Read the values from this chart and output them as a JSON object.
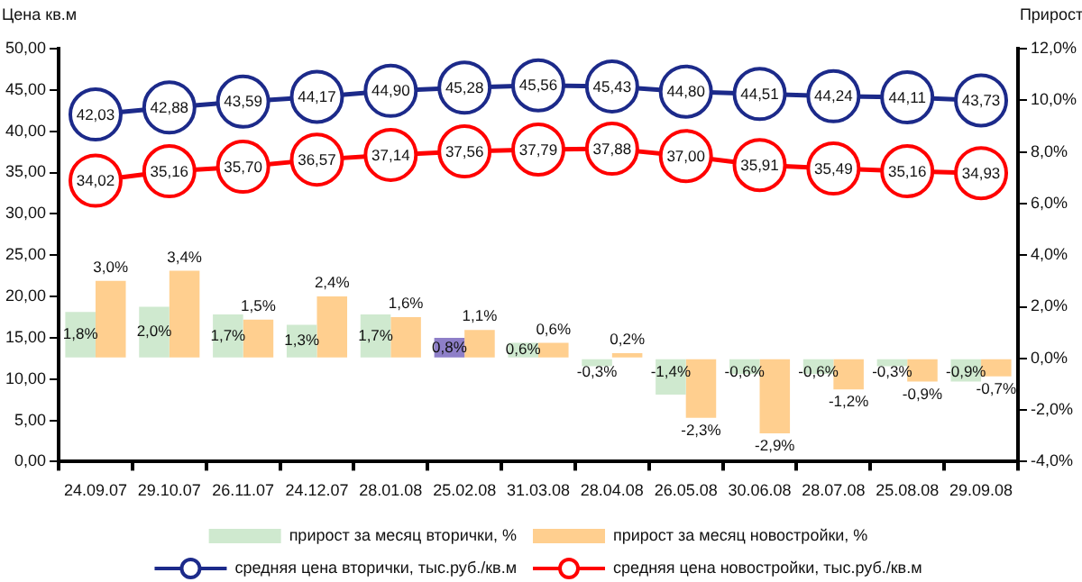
{
  "chart_data": {
    "type": "bar",
    "ylabel": "Цена кв.м",
    "y2label": "Прирост",
    "categories": [
      "24.09.07",
      "29.10.07",
      "26.11.07",
      "24.12.07",
      "28.01.08",
      "25.02.08",
      "31.03.08",
      "28.04.08",
      "26.05.08",
      "30.06.08",
      "28.07.08",
      "25.08.08",
      "29.09.08"
    ],
    "series": [
      {
        "name": "прирост за месяц вторички, %",
        "axis": "y2",
        "color": "#cfe9cf",
        "colors": [
          "#cfe9cf",
          "#cfe9cf",
          "#cfe9cf",
          "#cfe9cf",
          "#cfe9cf",
          "#8e7fc8",
          "#cfe9cf",
          "#cfe9cf",
          "#cfe9cf",
          "#cfe9cf",
          "#cfe9cf",
          "#cfe9cf",
          "#cfe9cf"
        ],
        "values": [
          1.8,
          2.0,
          1.7,
          1.3,
          1.7,
          0.8,
          0.6,
          -0.3,
          -1.4,
          -0.6,
          -0.6,
          -0.3,
          -0.9
        ],
        "value_labels": [
          "1,8%",
          "2,0%",
          "1,7%",
          "1,3%",
          "1,7%",
          "0,8%",
          "0,6%",
          "-0,3%",
          "-1,4%",
          "-0,6%",
          "-0,6%",
          "-0,3%",
          "-0,9%"
        ]
      },
      {
        "name": "прирост за месяц новостройки, %",
        "axis": "y2",
        "color": "#ffcf8f",
        "values": [
          3.0,
          3.4,
          1.5,
          2.4,
          1.6,
          1.1,
          0.6,
          0.2,
          -2.3,
          -2.9,
          -1.2,
          -0.9,
          -0.7
        ],
        "value_labels": [
          "3,0%",
          "3,4%",
          "1,5%",
          "2,4%",
          "1,6%",
          "1,1%",
          "0,6%",
          "0,2%",
          "-2,3%",
          "-2,9%",
          "-1,2%",
          "-0,9%",
          "-0,7%"
        ]
      },
      {
        "name": "средняя цена вторички, тыс.руб./кв.м",
        "type": "line",
        "color": "#1c2a8a",
        "values": [
          42.03,
          42.88,
          43.59,
          44.17,
          44.9,
          45.28,
          45.56,
          45.43,
          44.8,
          44.51,
          44.24,
          44.11,
          43.73
        ],
        "value_labels": [
          "42,03",
          "42,88",
          "43,59",
          "44,17",
          "44,90",
          "45,28",
          "45,56",
          "45,43",
          "44,80",
          "44,51",
          "44,24",
          "44,11",
          "43,73"
        ]
      },
      {
        "name": "средняя цена новостройки, тыс.руб./кв.м",
        "type": "line",
        "color": "#ff0000",
        "values": [
          34.02,
          35.16,
          35.7,
          36.57,
          37.14,
          37.56,
          37.79,
          37.88,
          37.0,
          35.91,
          35.49,
          35.16,
          34.93
        ],
        "value_labels": [
          "34,02",
          "35,16",
          "35,70",
          "36,57",
          "37,14",
          "37,56",
          "37,79",
          "37,88",
          "37,00",
          "35,91",
          "35,49",
          "35,16",
          "34,93"
        ]
      }
    ],
    "ylim": [
      0,
      50
    ],
    "yticks": [
      {
        "value": 0,
        "label": "0,00"
      },
      {
        "value": 5,
        "label": "5,00"
      },
      {
        "value": 10,
        "label": "10,00"
      },
      {
        "value": 15,
        "label": "15,00"
      },
      {
        "value": 20,
        "label": "20,00"
      },
      {
        "value": 25,
        "label": "25,00"
      },
      {
        "value": 30,
        "label": "30,00"
      },
      {
        "value": 35,
        "label": "35,00"
      },
      {
        "value": 40,
        "label": "40,00"
      },
      {
        "value": 45,
        "label": "45,00"
      },
      {
        "value": 50,
        "label": "50,00"
      }
    ],
    "y2lim": [
      -4,
      12
    ],
    "y2ticks": [
      {
        "value": -4,
        "label": "-4,0%"
      },
      {
        "value": -2,
        "label": "-2,0%"
      },
      {
        "value": 0,
        "label": "0,0%"
      },
      {
        "value": 2,
        "label": "2,0%"
      },
      {
        "value": 4,
        "label": "4,0%"
      },
      {
        "value": 6,
        "label": "6,0%"
      },
      {
        "value": 8,
        "label": "8,0%"
      },
      {
        "value": 10,
        "label": "10,0%"
      },
      {
        "value": 12,
        "label": "12,0%"
      }
    ],
    "grid": false,
    "legend": "bottom",
    "marker": "circle"
  }
}
